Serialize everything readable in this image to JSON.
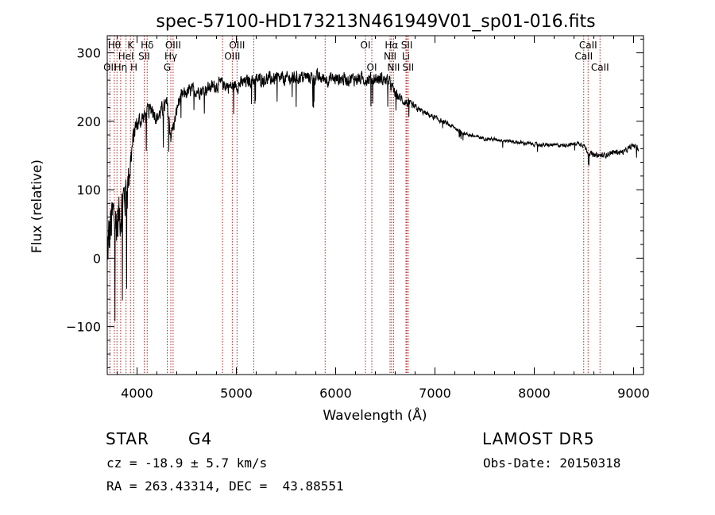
{
  "chart_data": {
    "type": "line",
    "title": "spec-57100-HD173213N461949V01_sp01-016.fits",
    "xlabel": "Wavelength (Å)",
    "ylabel": "Flux (relative)",
    "xlim": [
      3700,
      9100
    ],
    "ylim": [
      -170,
      325
    ],
    "xticks": [
      4000,
      5000,
      6000,
      7000,
      8000,
      9000
    ],
    "yticks": [
      -100,
      0,
      100,
      200,
      300
    ],
    "grid": false,
    "line_color": "#000000",
    "marker_color": "#b22222",
    "spectrum_anchors": {
      "x": [
        3700,
        3730,
        3760,
        3800,
        3850,
        3900,
        3950,
        3980,
        4020,
        4060,
        4100,
        4150,
        4200,
        4250,
        4300,
        4340,
        4380,
        4420,
        4480,
        4550,
        4650,
        4750,
        4850,
        4950,
        5050,
        5150,
        5300,
        5500,
        5700,
        5900,
        6100,
        6300,
        6450,
        6540,
        6600,
        6700,
        6800,
        6900,
        7000,
        7100,
        7200,
        7300,
        7400,
        7500,
        7700,
        7900,
        8100,
        8300,
        8450,
        8500,
        8540,
        8600,
        8700,
        8800,
        8900,
        9000,
        9050
      ],
      "y": [
        5,
        40,
        60,
        50,
        80,
        100,
        160,
        190,
        200,
        205,
        210,
        220,
        205,
        215,
        225,
        180,
        200,
        230,
        240,
        245,
        245,
        250,
        255,
        250,
        255,
        260,
        262,
        262,
        265,
        262,
        262,
        262,
        262,
        258,
        240,
        228,
        220,
        212,
        205,
        198,
        190,
        182,
        178,
        175,
        172,
        168,
        165,
        165,
        168,
        165,
        155,
        150,
        150,
        155,
        155,
        165,
        160
      ],
      "noise": [
        70,
        70,
        60,
        60,
        55,
        50,
        30,
        22,
        20,
        20,
        20,
        18,
        18,
        18,
        18,
        20,
        16,
        16,
        16,
        15,
        15,
        15,
        15,
        15,
        15,
        15,
        15,
        15,
        15,
        15,
        15,
        15,
        15,
        12,
        12,
        10,
        8,
        6,
        6,
        5,
        5,
        4,
        4,
        4,
        4,
        4,
        4,
        4,
        4,
        5,
        6,
        6,
        6,
        6,
        6,
        6,
        6
      ]
    },
    "lines": [
      {
        "x": 3727,
        "label": "OII",
        "row": 2
      },
      {
        "x": 3771,
        "label": "Hθ",
        "row": 0
      },
      {
        "x": 3798,
        "label": "",
        "row": 0
      },
      {
        "x": 3835,
        "label": "Hη",
        "row": 2
      },
      {
        "x": 3889,
        "label": "HeI",
        "row": 1
      },
      {
        "x": 3934,
        "label": "K",
        "row": 0
      },
      {
        "x": 3968,
        "label": "H",
        "row": 2
      },
      {
        "x": 4072,
        "label": "SII",
        "row": 1
      },
      {
        "x": 4102,
        "label": "Hδ",
        "row": 0
      },
      {
        "x": 4304,
        "label": "G",
        "row": 2
      },
      {
        "x": 4340,
        "label": "Hγ",
        "row": 1
      },
      {
        "x": 4363,
        "label": "OIII",
        "row": 0
      },
      {
        "x": 4861,
        "label": "",
        "row": 2
      },
      {
        "x": 4959,
        "label": "OIII",
        "row": 1
      },
      {
        "x": 5007,
        "label": "OIII",
        "row": 0
      },
      {
        "x": 5175,
        "label": "",
        "row": 0
      },
      {
        "x": 5894,
        "label": "",
        "row": 0
      },
      {
        "x": 6300,
        "label": "OI",
        "row": 0
      },
      {
        "x": 6364,
        "label": "OI",
        "row": 2
      },
      {
        "x": 6548,
        "label": "NII",
        "row": 1
      },
      {
        "x": 6563,
        "label": "Hα",
        "row": 0
      },
      {
        "x": 6583,
        "label": "NII",
        "row": 2
      },
      {
        "x": 6708,
        "label": "Li",
        "row": 1
      },
      {
        "x": 6717,
        "label": "SII",
        "row": 0
      },
      {
        "x": 6731,
        "label": "SII",
        "row": 2
      },
      {
        "x": 8498,
        "label": "CaII",
        "row": 1
      },
      {
        "x": 8542,
        "label": "CaII",
        "row": 0
      },
      {
        "x": 8662,
        "label": "CaII",
        "row": 2
      }
    ]
  },
  "info": {
    "class": "STAR",
    "subclass": "G4",
    "cz": "cz = -18.9 ± 5.7 km/s",
    "coords": "RA = 263.43314, DEC =  43.88551",
    "survey": "LAMOST DR5",
    "obs_date": "Obs-Date: 20150318"
  }
}
